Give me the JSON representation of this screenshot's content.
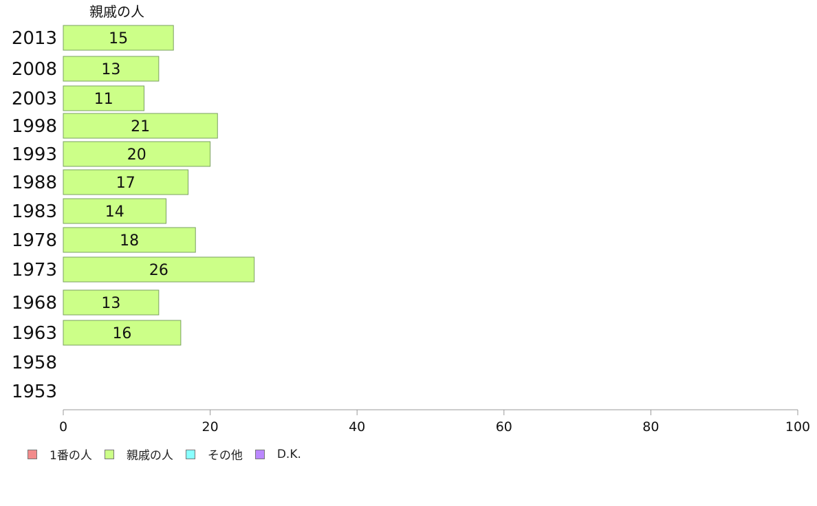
{
  "chart_data": {
    "type": "bar",
    "orientation": "horizontal",
    "stacked": true,
    "categories": [
      "2013",
      "2008",
      "2003",
      "1998",
      "1993",
      "1988",
      "1983",
      "1978",
      "1973",
      "1968",
      "1963",
      "1958",
      "1953"
    ],
    "series": [
      {
        "name": "1番の人",
        "color": "#f28b8b",
        "values": [
          null,
          null,
          null,
          null,
          null,
          null,
          null,
          null,
          null,
          null,
          null,
          null,
          null
        ]
      },
      {
        "name": "親戚の人",
        "color": "#ccff88",
        "values": [
          15,
          13,
          11,
          21,
          20,
          17,
          14,
          18,
          26,
          13,
          16,
          null,
          null
        ]
      },
      {
        "name": "その他",
        "color": "#88ffff",
        "values": [
          null,
          null,
          null,
          null,
          null,
          null,
          null,
          null,
          null,
          null,
          null,
          null,
          null
        ]
      },
      {
        "name": "D.K.",
        "color": "#bb88ff",
        "values": [
          null,
          null,
          null,
          null,
          null,
          null,
          null,
          null,
          null,
          null,
          null,
          null,
          null
        ]
      }
    ],
    "visible_series_title": "親戚の人",
    "x_ticks": [
      0,
      20,
      40,
      60,
      80,
      100
    ],
    "xlim": [
      0,
      100
    ],
    "grid": false,
    "legend_position": "bottom-left"
  }
}
